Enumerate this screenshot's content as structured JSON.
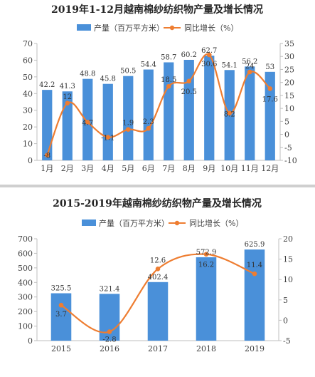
{
  "chart_data": [
    {
      "type": "bar",
      "title": "2019年1-12月越南棉纱纺织物产量及增长情况",
      "categories": [
        "1月",
        "2月",
        "3月",
        "4月",
        "5月",
        "6月",
        "7月",
        "8月",
        "9月",
        "10月",
        "11月",
        "12月"
      ],
      "series": [
        {
          "name": "产量（百万平方米）",
          "type": "bar",
          "axis": "left",
          "values": [
            42.2,
            41.3,
            48.8,
            45.8,
            50.5,
            54.4,
            58.7,
            60.2,
            62.7,
            54.1,
            56.2,
            53
          ]
        },
        {
          "name": "同比增长（%）",
          "type": "line",
          "axis": "right",
          "values": [
            -8,
            12,
            4.7,
            -1.1,
            1.9,
            2.3,
            18.5,
            20.5,
            30.6,
            8.2,
            24,
            17.6
          ]
        }
      ],
      "ylim_left": [
        0,
        70
      ],
      "yticks_left": [
        0,
        10,
        20,
        30,
        40,
        50,
        60,
        70
      ],
      "ylim_right": [
        -10,
        35
      ],
      "yticks_right": [
        -10,
        -5,
        0,
        5,
        10,
        15,
        20,
        25,
        30,
        35
      ],
      "legend_position": "top-center",
      "grid": false
    },
    {
      "type": "bar",
      "title": "2015-2019年越南棉纱纺织物产量及增长情况",
      "categories": [
        "2015",
        "2016",
        "2017",
        "2018",
        "2019"
      ],
      "series": [
        {
          "name": "产量（百万平方米）",
          "type": "bar",
          "axis": "left",
          "values": [
            325.5,
            321.4,
            402.4,
            572.9,
            625.9
          ]
        },
        {
          "name": "同比增长（%）",
          "type": "line",
          "axis": "right",
          "values": [
            3.7,
            -2.8,
            12.6,
            16.2,
            11.4
          ]
        }
      ],
      "ylim_left": [
        0,
        700
      ],
      "yticks_left": [
        0,
        100,
        200,
        300,
        400,
        500,
        600,
        700
      ],
      "ylim_right": [
        -5,
        20
      ],
      "yticks_right": [
        -5,
        0,
        5,
        10,
        15,
        20
      ],
      "legend_position": "top-center",
      "grid": false
    }
  ],
  "colors": {
    "bar": "#4a90d9",
    "line": "#ee7d31",
    "axis": "#bfbfbf",
    "text": "#404040"
  }
}
